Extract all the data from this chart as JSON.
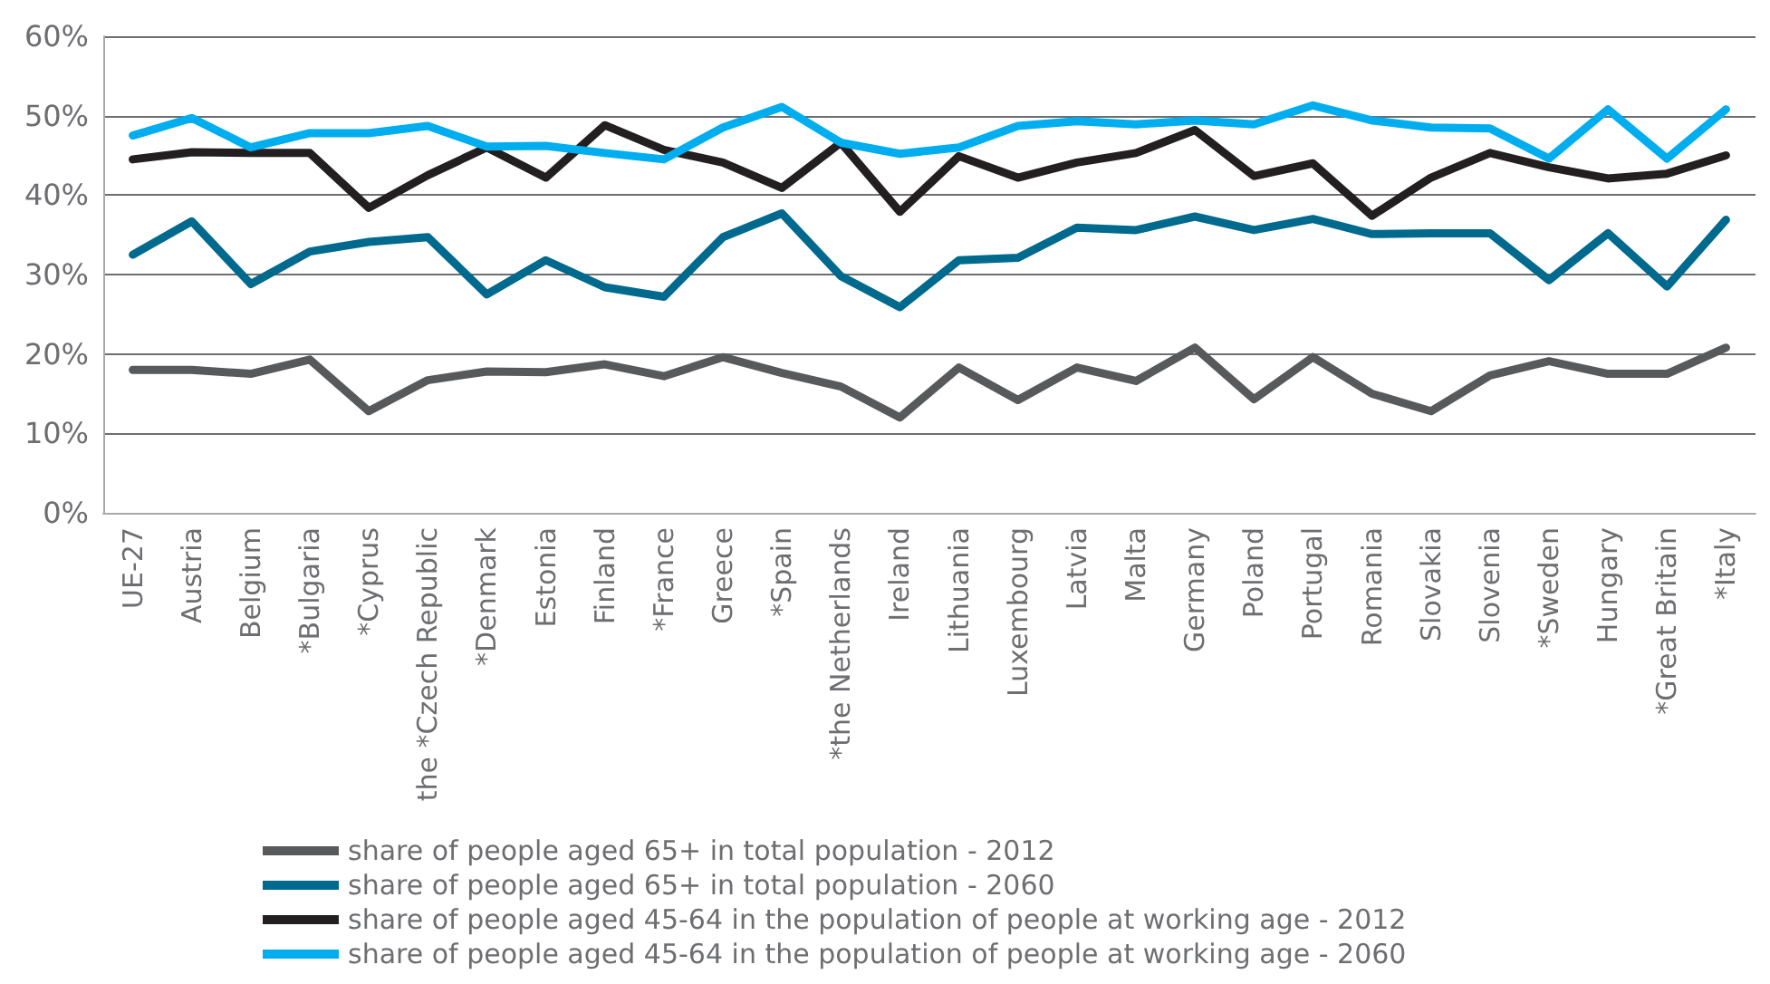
{
  "chart_data": {
    "type": "line",
    "categories": [
      "UE-27",
      "Austria",
      "Belgium",
      "*Bulgaria",
      "*Cyprus",
      "the *Czech Republic",
      "*Denmark",
      "Estonia",
      "Finland",
      "*France",
      "Greece",
      "*Spain",
      "*the Netherlands",
      "Ireland",
      "Lithuania",
      "Luxembourg",
      "Latvia",
      "Malta",
      "Germany",
      "Poland",
      "Portugal",
      "Romania",
      "Slovakia",
      "Slovenia",
      "*Sweden",
      "Hungary",
      "*Great Britain",
      "*Italy"
    ],
    "series": [
      {
        "name": "share of people aged 65+ in total population - 2012",
        "color": "#58595b",
        "values": [
          18,
          18,
          17.5,
          19.3,
          12.8,
          16.7,
          17.8,
          17.7,
          18.7,
          17.2,
          19.6,
          17.6,
          15.9,
          12,
          18.3,
          14.2,
          18.3,
          16.6,
          20.8,
          14.3,
          19.6,
          15,
          12.8,
          17.3,
          19.1,
          17.5,
          17.5,
          20.8
        ]
      },
      {
        "name": "share of people aged 65+ in total population - 2060",
        "color": "#006a8e",
        "values": [
          32.5,
          36.7,
          28.8,
          32.9,
          34.1,
          34.7,
          27.5,
          31.8,
          28.4,
          27.2,
          34.7,
          37.7,
          29.8,
          25.9,
          31.8,
          32.1,
          35.9,
          35.6,
          37.3,
          35.6,
          37,
          35.1,
          35.2,
          35.2,
          29.3,
          35.2,
          28.5,
          36.9
        ]
      },
      {
        "name": "share of people aged 45-64 in the population of people at working age - 2012",
        "color": "#231f20",
        "values": [
          44.5,
          45.4,
          45.3,
          45.3,
          38.4,
          42.5,
          46,
          42.2,
          48.8,
          45.7,
          44.1,
          40.9,
          46.6,
          37.9,
          44.9,
          42.2,
          44.1,
          45.3,
          48.2,
          42.4,
          44,
          37.4,
          42.2,
          45.3,
          43.5,
          42.1,
          42.7,
          45
        ]
      },
      {
        "name": "share of people aged 45-64 in the population of people at working age - 2060",
        "color": "#00aeef",
        "values": [
          47.5,
          49.7,
          46,
          47.8,
          47.8,
          48.7,
          46.1,
          46.2,
          45.3,
          44.5,
          48.5,
          51.1,
          46.6,
          45.2,
          46,
          48.7,
          49.3,
          48.9,
          49.4,
          48.9,
          51.3,
          49.4,
          48.5,
          48.4,
          44.6,
          50.8,
          44.6,
          50.8
        ]
      }
    ],
    "ylim": [
      0,
      60
    ],
    "yticks": [
      {
        "value": 0,
        "label": "0%"
      },
      {
        "value": 10,
        "label": "10%"
      },
      {
        "value": 20,
        "label": "20%"
      },
      {
        "value": 30,
        "label": "30%"
      },
      {
        "value": 40,
        "label": "40%"
      },
      {
        "value": 50,
        "label": "50%"
      },
      {
        "value": 60,
        "label": "60%"
      }
    ],
    "grid": "y",
    "legend": "bottom",
    "marker": "none",
    "line_style": "solid"
  }
}
